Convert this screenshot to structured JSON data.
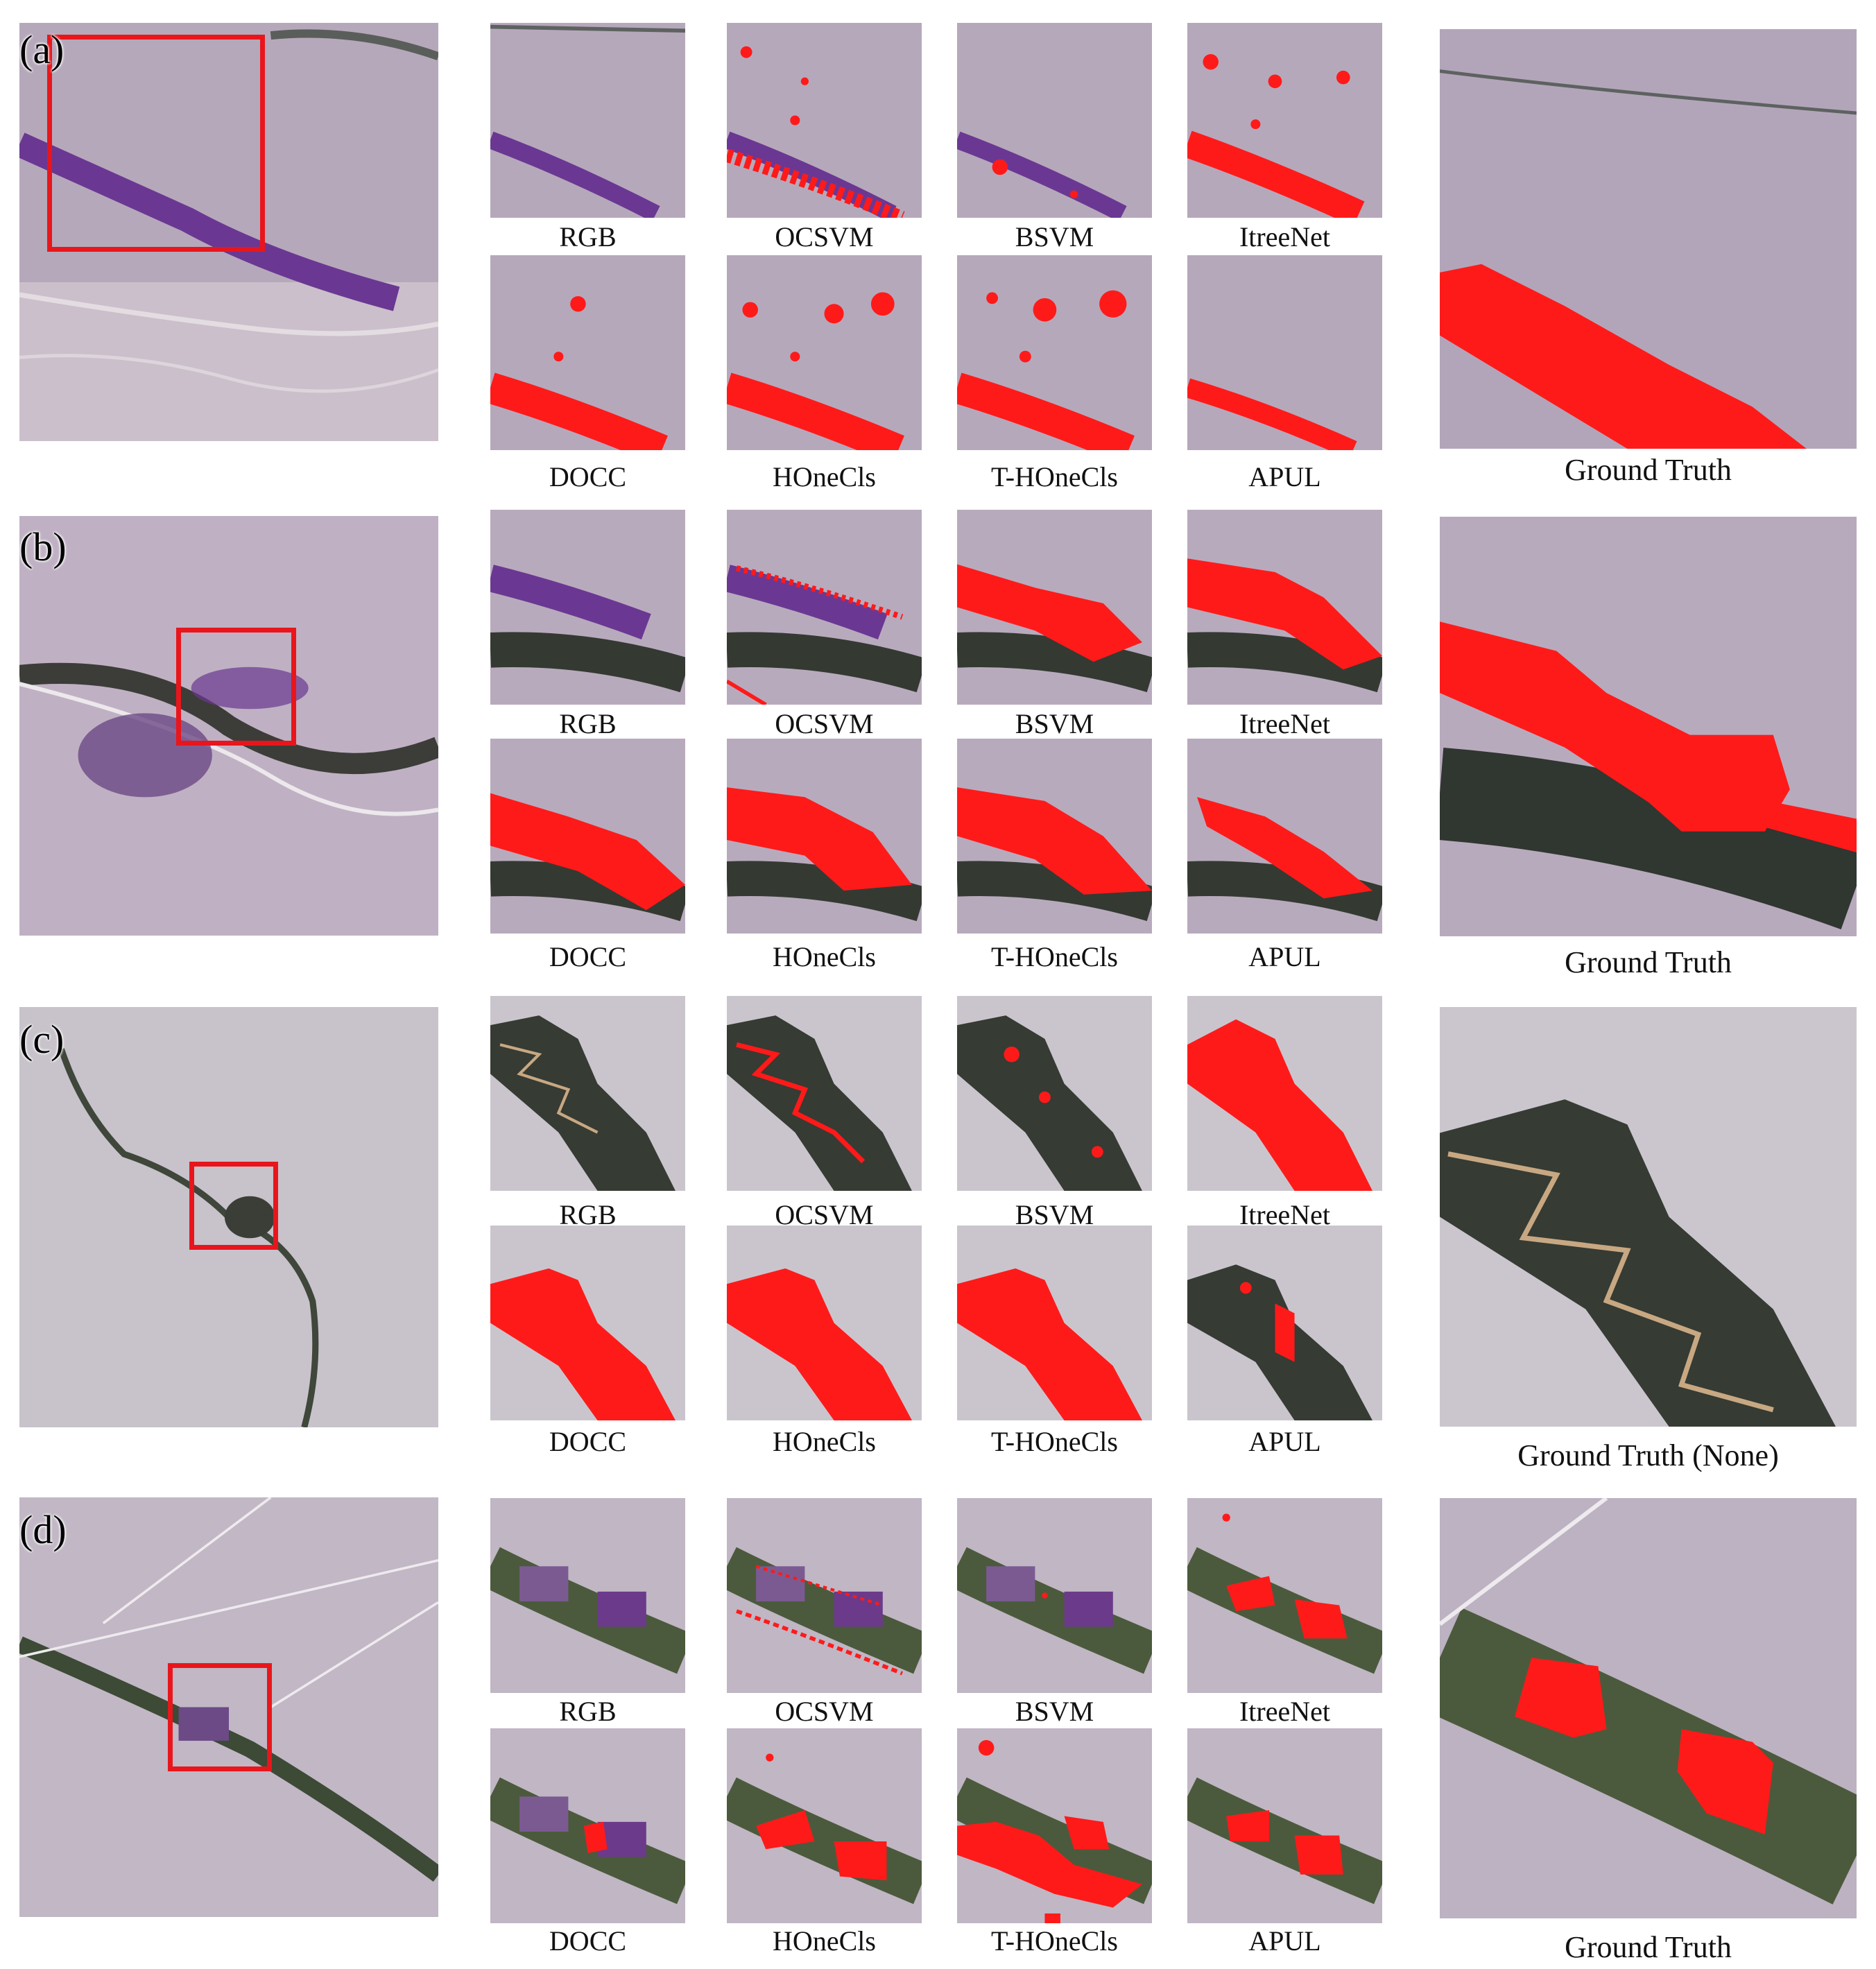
{
  "panels": [
    {
      "label": "(a)",
      "captions": [
        "RGB",
        "OCSVM",
        "BSVM",
        "ItreeNet",
        "DOCC",
        "HOneCls",
        "T-HOneCls",
        "APUL"
      ],
      "ground_truth": "Ground Truth"
    },
    {
      "label": "(b)",
      "captions": [
        "RGB",
        "OCSVM",
        "BSVM",
        "ItreeNet",
        "DOCC",
        "HOneCls",
        "T-HOneCls",
        "APUL"
      ],
      "ground_truth": "Ground Truth"
    },
    {
      "label": "(c)",
      "captions": [
        "RGB",
        "OCSVM",
        "BSVM",
        "ItreeNet",
        "DOCC",
        "HOneCls",
        "T-HOneCls",
        "APUL"
      ],
      "ground_truth": "Ground Truth (None)"
    },
    {
      "label": "(d)",
      "captions": [
        "RGB",
        "OCSVM",
        "BSVM",
        "ItreeNet",
        "DOCC",
        "HOneCls",
        "T-HOneCls",
        "APUL"
      ],
      "ground_truth": "Ground Truth"
    }
  ],
  "colors": {
    "prediction": "#ff1a1a",
    "roi_box": "#e8161c",
    "terrain_a": "#b8a9bd",
    "vegetation": "#6b3a8a"
  }
}
